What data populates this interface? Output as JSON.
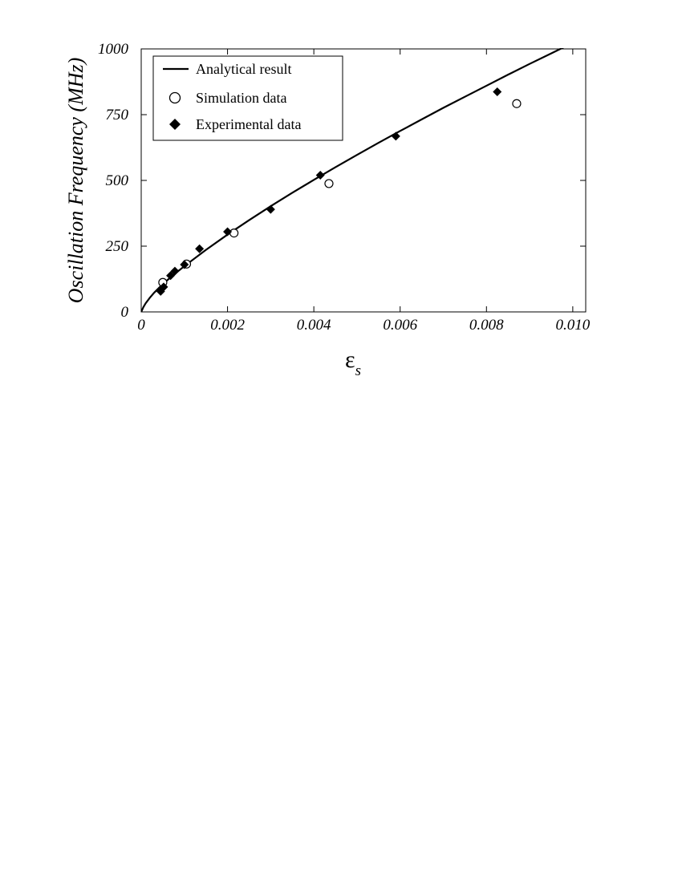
{
  "chart_data": {
    "type": "scatter",
    "title": "",
    "ylabel": "Oscillation Frequency (MHz)",
    "xlabel": "ε",
    "xlabel_subscript": "s",
    "xlim": [
      0,
      0.0103
    ],
    "ylim": [
      0,
      1000
    ],
    "xticks": [
      0,
      0.002,
      0.004,
      0.006,
      0.008,
      0.01
    ],
    "xtick_labels": [
      "0",
      "0.002",
      "0.004",
      "0.006",
      "0.008",
      "0.010"
    ],
    "yticks": [
      0,
      250,
      500,
      750,
      1000
    ],
    "ytick_labels": [
      "0",
      "250",
      "500",
      "750",
      "1000"
    ],
    "grid": false,
    "legend_position": "top-left",
    "series": [
      {
        "name": "Analytical result",
        "kind": "line",
        "color": "#000000",
        "x": [
          0,
          5e-05,
          0.0001,
          0.0002,
          0.0003,
          0.0005,
          0.00075,
          0.001,
          0.0015,
          0.002,
          0.0025,
          0.003,
          0.0035,
          0.004,
          0.0045,
          0.005,
          0.0055,
          0.006,
          0.0065,
          0.007,
          0.0075,
          0.008,
          0.0085,
          0.009,
          0.0095,
          0.01,
          0.0103
        ],
        "y": [
          0,
          18,
          32,
          54,
          73,
          106,
          141,
          174,
          236,
          294,
          349,
          402,
          453,
          502,
          550,
          597,
          643,
          688,
          732,
          776,
          818,
          860,
          902,
          943,
          983,
          1023,
          1047
        ]
      },
      {
        "name": "Simulation data",
        "kind": "scatter",
        "marker": "open-circle",
        "color": "#000000",
        "x": [
          0.0005,
          0.00105,
          0.00215,
          0.00435,
          0.0087
        ],
        "y": [
          112,
          182,
          300,
          488,
          792
        ]
      },
      {
        "name": "Experimental data",
        "kind": "scatter",
        "marker": "filled-diamond",
        "color": "#000000",
        "x": [
          0.00045,
          0.00052,
          0.00068,
          0.00078,
          0.001,
          0.00135,
          0.002,
          0.003,
          0.00415,
          0.0059,
          0.00825
        ],
        "y": [
          78,
          95,
          138,
          155,
          180,
          240,
          305,
          390,
          520,
          668,
          837
        ]
      }
    ]
  }
}
